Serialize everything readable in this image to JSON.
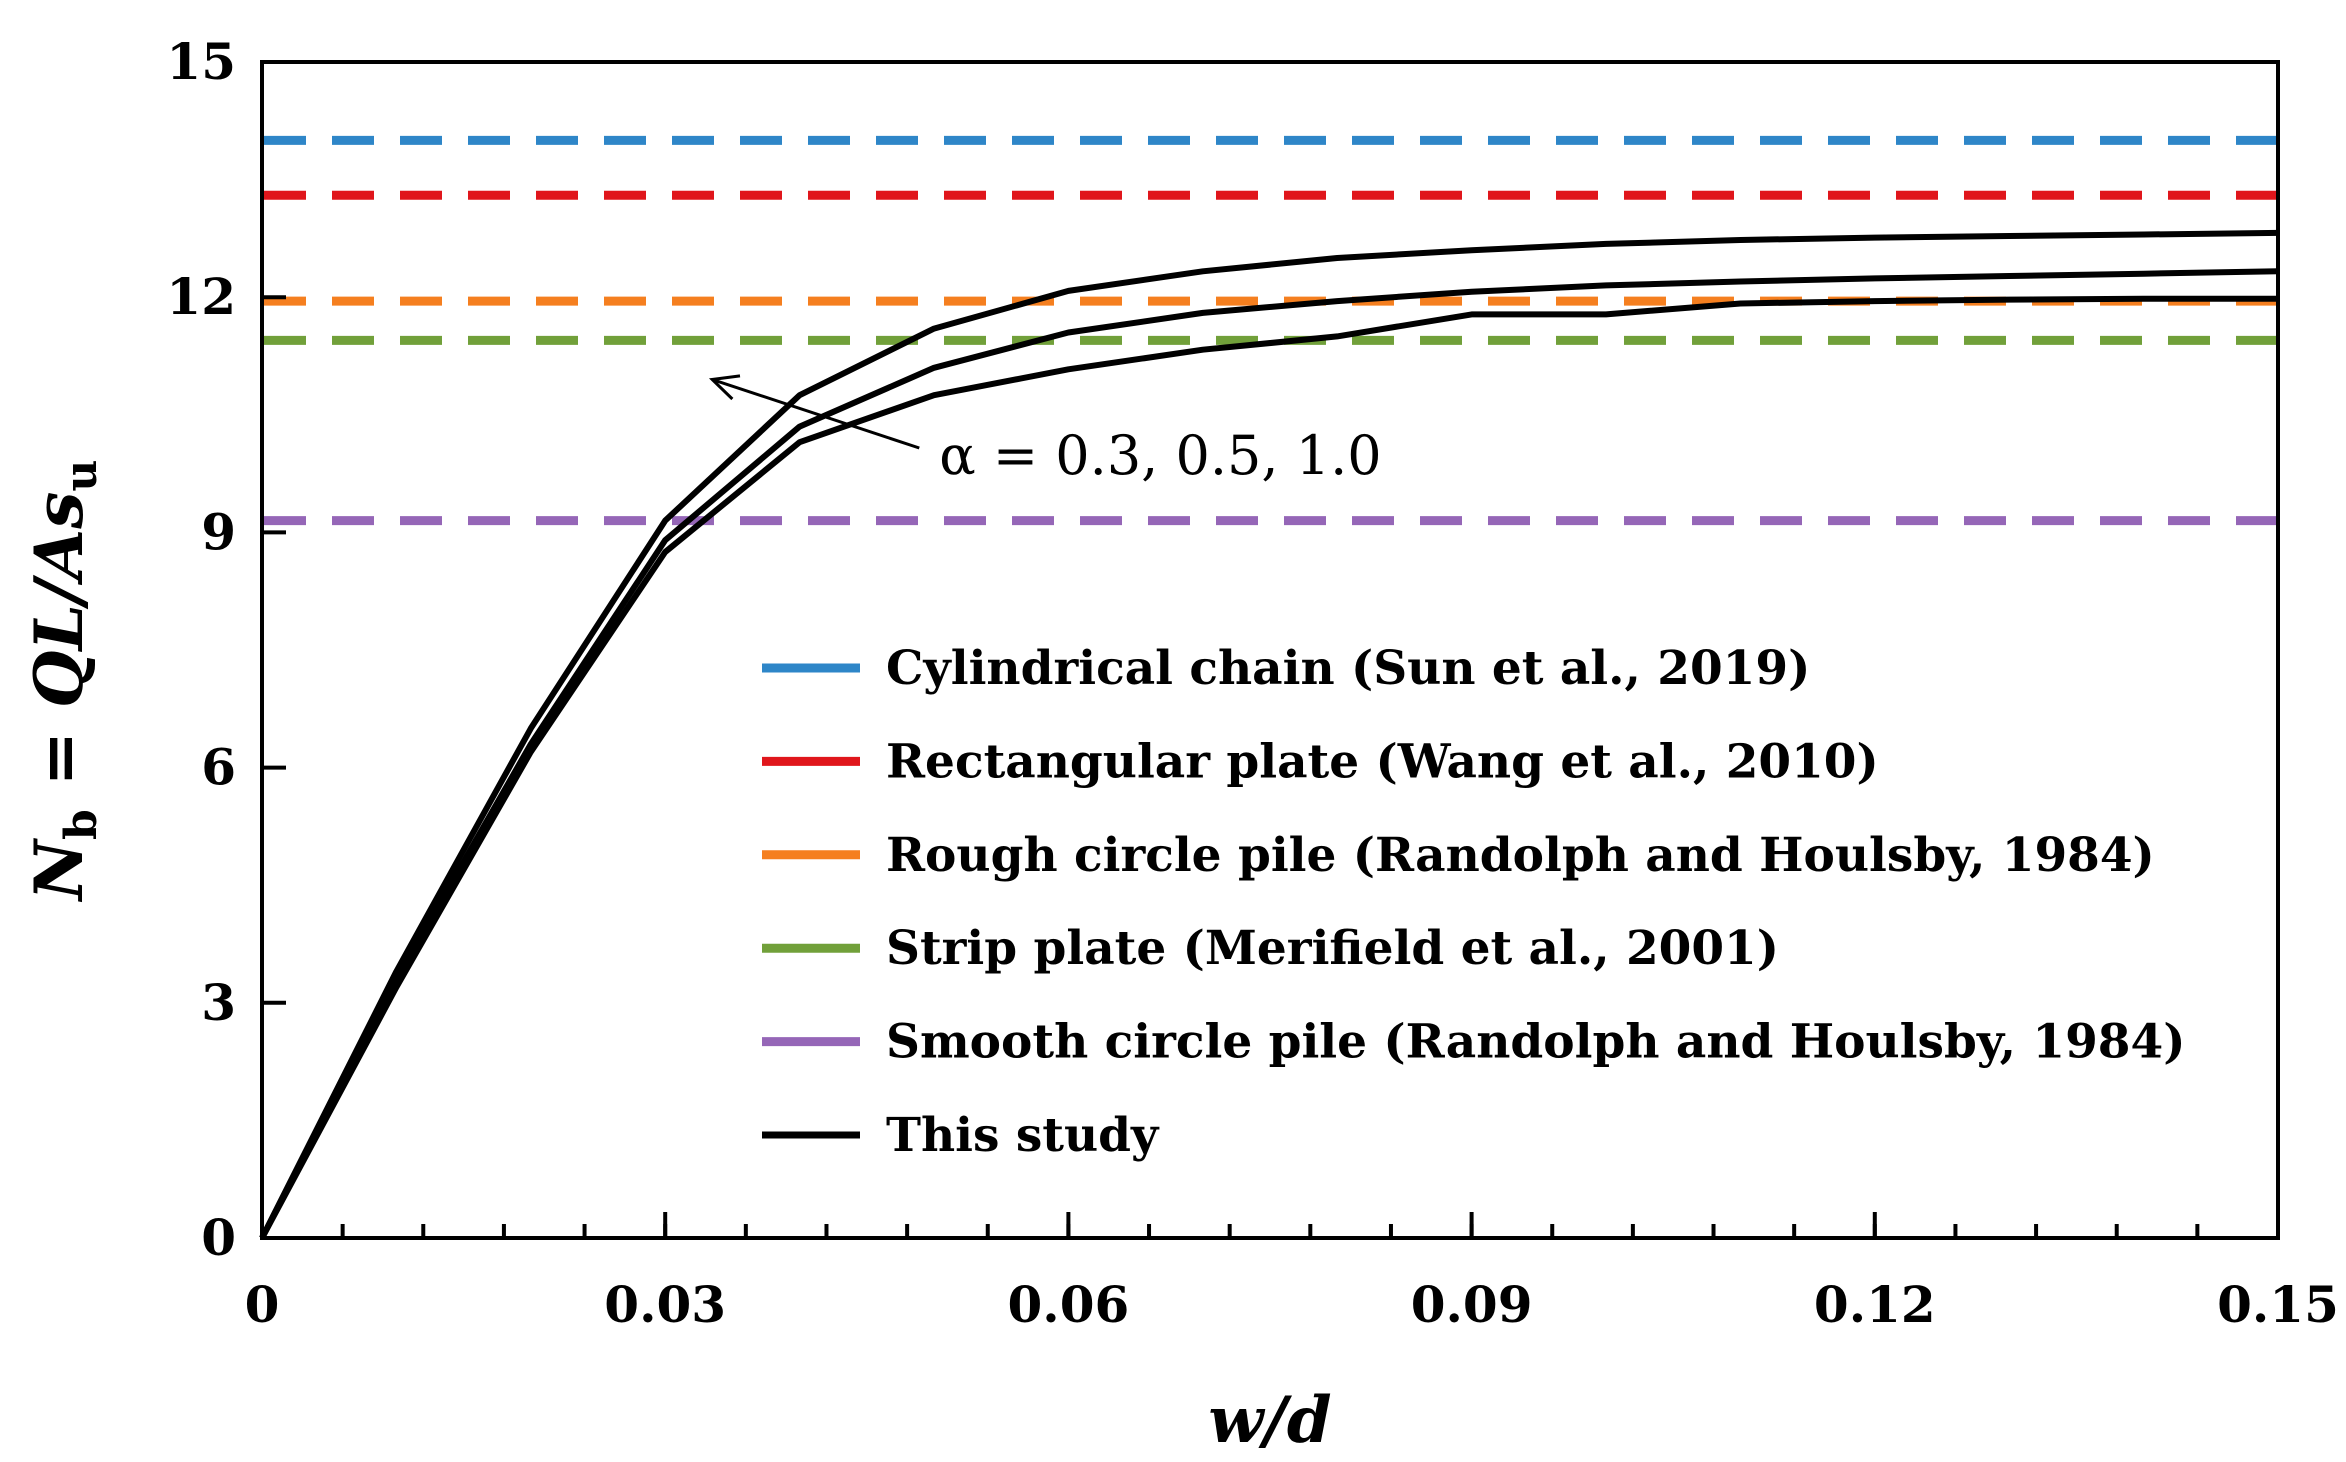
{
  "chart_data": {
    "type": "line",
    "xlabel": "w/d",
    "ylabel": {
      "symbol": "N",
      "symbol_sub": "b",
      "equals": " = ",
      "expression": "QL/As",
      "expression_sub": "u"
    },
    "xlim": [
      0,
      0.15
    ],
    "ylim": [
      0,
      15
    ],
    "xticks": [
      "0",
      "0.03",
      "0.06",
      "0.09",
      "0.12",
      "0.15"
    ],
    "xtick_values": [
      0,
      0.03,
      0.06,
      0.09,
      0.12,
      0.15
    ],
    "yticks": [
      "0",
      "3",
      "6",
      "9",
      "12",
      "15"
    ],
    "ytick_values": [
      0,
      3,
      6,
      9,
      12,
      15
    ],
    "x_minor_step": 0.006,
    "grid": false,
    "legend_position": "bottom-right",
    "reference_lines": [
      {
        "name": "Cylindrical chain (Sun et al., 2019)",
        "value": 14.0,
        "color": "#2e86c8",
        "style": "dashed"
      },
      {
        "name": "Rectangular plate (Wang et al., 2010)",
        "value": 13.3,
        "color": "#e0161c",
        "style": "dashed"
      },
      {
        "name": "Rough circle pile (Randolph and Houlsby, 1984)",
        "value": 11.95,
        "color": "#f57f1f",
        "style": "dashed"
      },
      {
        "name": "Strip plate (Merifield et al., 2001)",
        "value": 11.45,
        "color": "#71a03a",
        "style": "dashed"
      },
      {
        "name": "Smooth circle pile (Randolph and Houlsby, 1984)",
        "value": 9.15,
        "color": "#9566b7",
        "style": "dashed"
      }
    ],
    "series_legend": {
      "name": "This study",
      "color": "#000000"
    },
    "series": [
      {
        "name": "This study (upper)",
        "color": "#000000",
        "x": [
          0,
          0.01,
          0.02,
          0.03,
          0.04,
          0.05,
          0.06,
          0.07,
          0.08,
          0.09,
          0.1,
          0.11,
          0.12,
          0.13,
          0.14,
          0.15
        ],
        "y": [
          0,
          3.4,
          6.5,
          9.15,
          10.75,
          11.6,
          12.08,
          12.33,
          12.5,
          12.6,
          12.68,
          12.73,
          12.76,
          12.78,
          12.8,
          12.82
        ]
      },
      {
        "name": "This study (middle)",
        "color": "#000000",
        "x": [
          0,
          0.01,
          0.02,
          0.03,
          0.04,
          0.05,
          0.06,
          0.07,
          0.08,
          0.09,
          0.1,
          0.11,
          0.12,
          0.13,
          0.14,
          0.15
        ],
        "y": [
          0,
          3.3,
          6.3,
          8.9,
          10.35,
          11.1,
          11.55,
          11.8,
          11.95,
          12.07,
          12.15,
          12.2,
          12.24,
          12.27,
          12.3,
          12.33
        ]
      },
      {
        "name": "This study (lower)",
        "color": "#000000",
        "x": [
          0,
          0.01,
          0.02,
          0.03,
          0.04,
          0.05,
          0.06,
          0.07,
          0.08,
          0.09,
          0.1,
          0.11,
          0.12,
          0.13,
          0.14,
          0.15
        ],
        "y": [
          0,
          3.2,
          6.2,
          8.75,
          10.15,
          10.75,
          11.08,
          11.33,
          11.5,
          11.78,
          11.78,
          11.92,
          11.95,
          11.97,
          11.98,
          11.98
        ]
      }
    ],
    "annotations": [
      {
        "text": "α = 0.3, 0.5, 1.0",
        "arrow_from": [
          0.0495,
          10.0
        ],
        "arrow_to": [
          0.0335,
          10.95
        ],
        "text_at": [
          0.0495,
          10.0
        ]
      }
    ]
  }
}
